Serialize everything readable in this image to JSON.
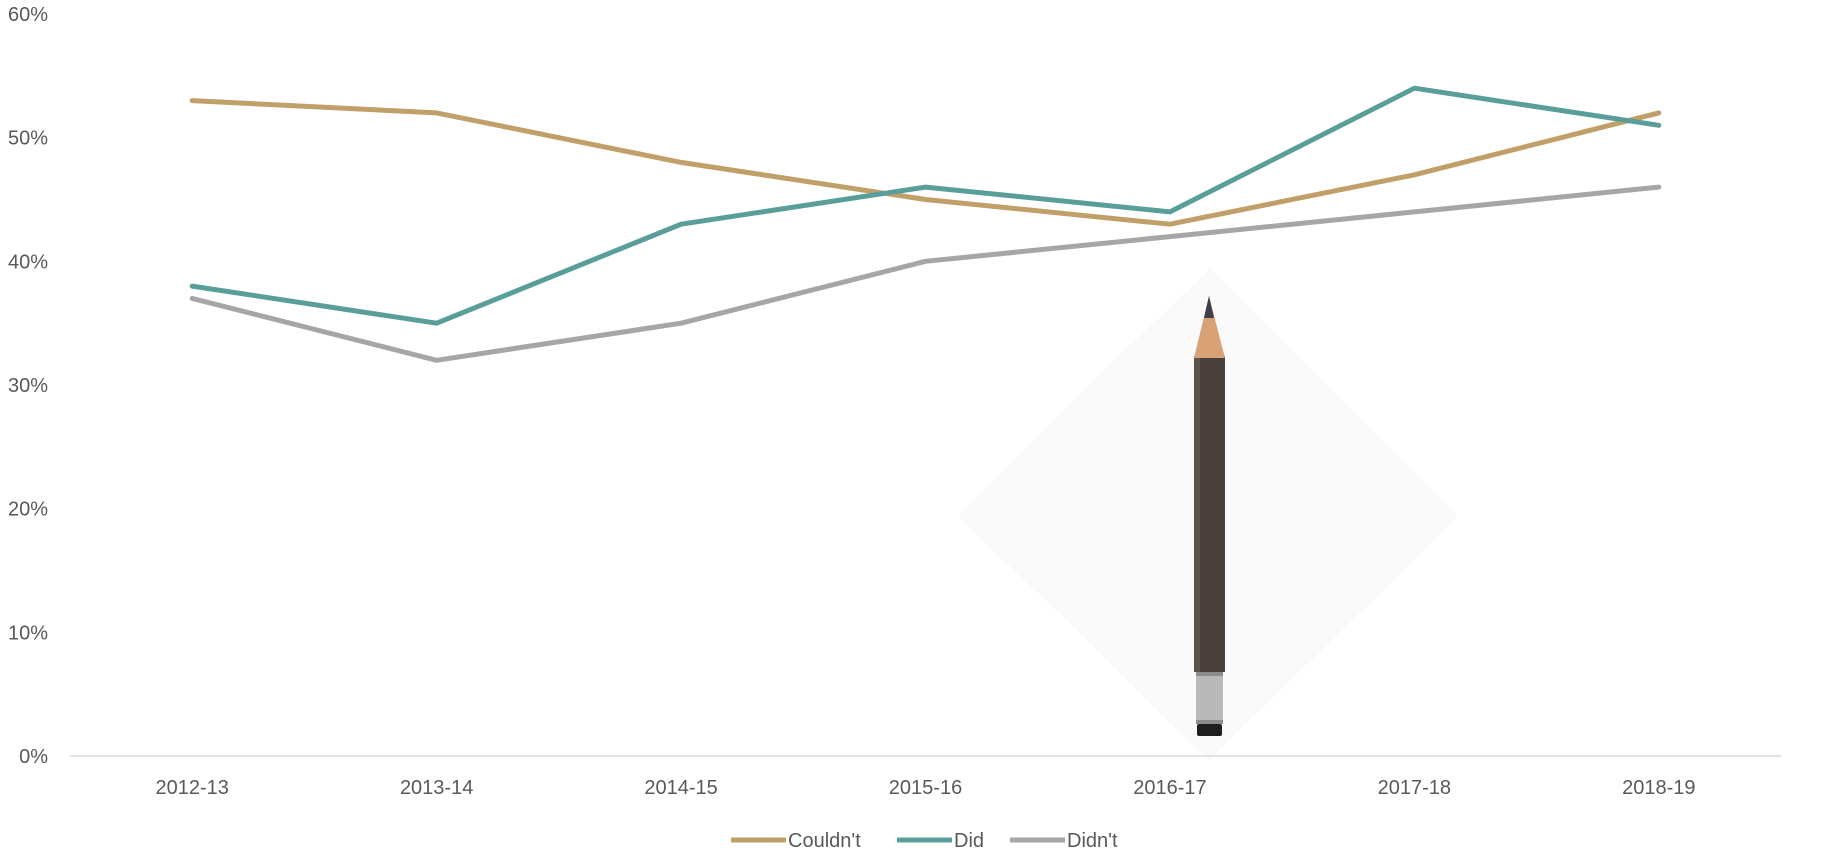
{
  "chart_data": {
    "type": "line",
    "title": "",
    "xlabel": "",
    "ylabel": "",
    "categories": [
      "2012-13",
      "2013-14",
      "2014-15",
      "2015-16",
      "2016-17",
      "2017-18",
      "2018-19"
    ],
    "y_ticks": [
      "0%",
      "10%",
      "20%",
      "30%",
      "40%",
      "50%",
      "60%"
    ],
    "ylim": [
      0,
      60
    ],
    "grid": false,
    "legend_position": "bottom",
    "series": [
      {
        "name": "Couldn't",
        "color": "#C0A068",
        "values": [
          53,
          52,
          48,
          45,
          43,
          47,
          52
        ]
      },
      {
        "name": "Did",
        "color": "#5A9E9A",
        "values": [
          38,
          35,
          43,
          46,
          44,
          54,
          51
        ]
      },
      {
        "name": "Didn't",
        "color": "#A6A6A6",
        "values": [
          37,
          32,
          35,
          40,
          42,
          44,
          46
        ]
      }
    ]
  },
  "decoration": {
    "icon": "pencil-icon"
  }
}
